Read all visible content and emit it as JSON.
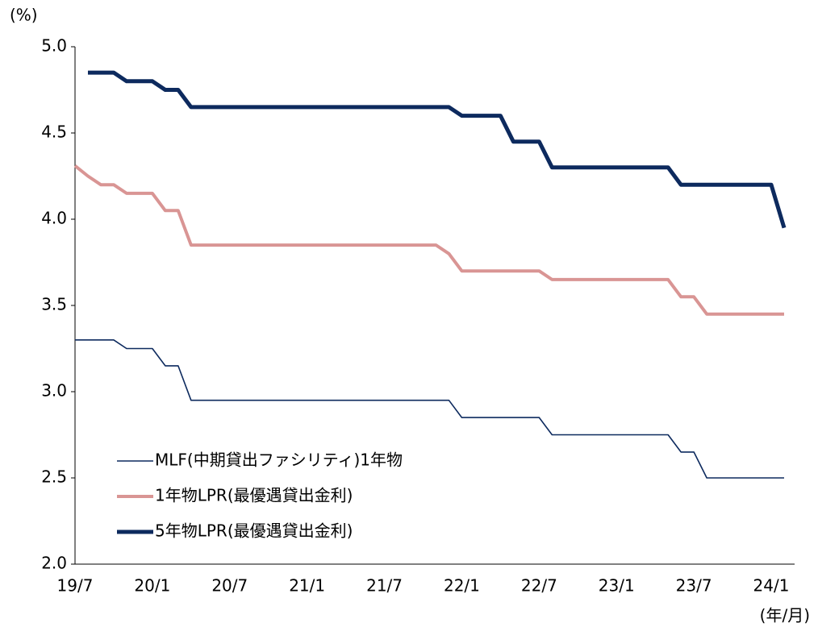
{
  "chart_data": {
    "type": "line",
    "y_axis_label": "(%)",
    "x_axis_label": "(年/月)",
    "categories": [
      "19/7",
      null,
      null,
      null,
      null,
      null,
      "20/1",
      null,
      null,
      null,
      null,
      null,
      "20/7",
      null,
      null,
      null,
      null,
      null,
      "21/1",
      null,
      null,
      null,
      null,
      null,
      "21/7",
      null,
      null,
      null,
      null,
      null,
      "22/1",
      null,
      null,
      null,
      null,
      null,
      "22/7",
      null,
      null,
      null,
      null,
      null,
      "23/1",
      null,
      null,
      null,
      null,
      null,
      "23/7",
      null,
      null,
      null,
      null,
      null,
      "24/1",
      null
    ],
    "series": [
      {
        "name": "MLF(中期貸出ファシリティ)1年物",
        "color": "#0d2a5e",
        "values": [
          3.3,
          3.3,
          3.3,
          3.3,
          3.25,
          3.25,
          3.25,
          3.15,
          3.15,
          2.95,
          2.95,
          2.95,
          2.95,
          2.95,
          2.95,
          2.95,
          2.95,
          2.95,
          2.95,
          2.95,
          2.95,
          2.95,
          2.95,
          2.95,
          2.95,
          2.95,
          2.95,
          2.95,
          2.95,
          2.95,
          2.85,
          2.85,
          2.85,
          2.85,
          2.85,
          2.85,
          2.85,
          2.75,
          2.75,
          2.75,
          2.75,
          2.75,
          2.75,
          2.75,
          2.75,
          2.75,
          2.75,
          2.65,
          2.65,
          2.5,
          2.5,
          2.5,
          2.5,
          2.5,
          2.5,
          2.5
        ]
      },
      {
        "name": "1年物LPR(最優遇貸出金利)",
        "color": "#d99594",
        "values": [
          4.31,
          4.25,
          4.2,
          4.2,
          4.15,
          4.15,
          4.15,
          4.05,
          4.05,
          3.85,
          3.85,
          3.85,
          3.85,
          3.85,
          3.85,
          3.85,
          3.85,
          3.85,
          3.85,
          3.85,
          3.85,
          3.85,
          3.85,
          3.85,
          3.85,
          3.85,
          3.85,
          3.85,
          3.85,
          3.8,
          3.7,
          3.7,
          3.7,
          3.7,
          3.7,
          3.7,
          3.7,
          3.65,
          3.65,
          3.65,
          3.65,
          3.65,
          3.65,
          3.65,
          3.65,
          3.65,
          3.65,
          3.55,
          3.55,
          3.45,
          3.45,
          3.45,
          3.45,
          3.45,
          3.45,
          3.45
        ]
      },
      {
        "name": "5年物LPR(最優遇貸出金利)",
        "color": "#0d2a5e",
        "values": [
          null,
          4.85,
          4.85,
          4.85,
          4.8,
          4.8,
          4.8,
          4.75,
          4.75,
          4.65,
          4.65,
          4.65,
          4.65,
          4.65,
          4.65,
          4.65,
          4.65,
          4.65,
          4.65,
          4.65,
          4.65,
          4.65,
          4.65,
          4.65,
          4.65,
          4.65,
          4.65,
          4.65,
          4.65,
          4.65,
          4.6,
          4.6,
          4.6,
          4.6,
          4.45,
          4.45,
          4.45,
          4.3,
          4.3,
          4.3,
          4.3,
          4.3,
          4.3,
          4.3,
          4.3,
          4.3,
          4.3,
          4.2,
          4.2,
          4.2,
          4.2,
          4.2,
          4.2,
          4.2,
          4.2,
          3.95
        ]
      }
    ],
    "ylim": [
      2.0,
      5.0
    ],
    "yticks": [
      {
        "value": 2.0,
        "label": "2.0"
      },
      {
        "value": 2.5,
        "label": "2.5"
      },
      {
        "value": 3.0,
        "label": "3.0"
      },
      {
        "value": 3.5,
        "label": "3.5"
      },
      {
        "value": 4.0,
        "label": "4.0"
      },
      {
        "value": 4.5,
        "label": "4.5"
      },
      {
        "value": 5.0,
        "label": "5.0"
      }
    ],
    "grid": false,
    "legend": "lower left"
  }
}
